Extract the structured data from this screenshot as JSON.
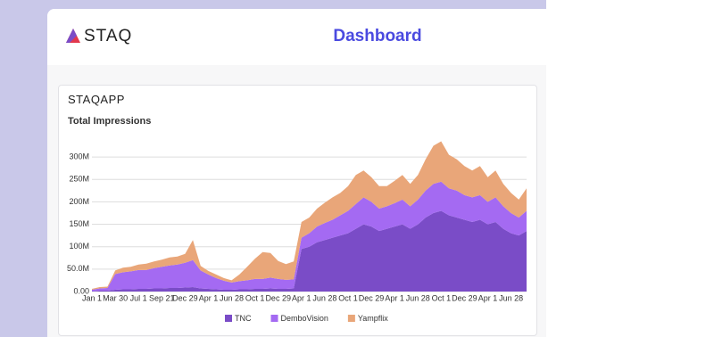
{
  "header": {
    "logo": "STAQ",
    "title": "Dashboard"
  },
  "panel": {
    "title": "STAQAPP"
  },
  "chart_data": {
    "type": "stacked-area",
    "title": "Total Impressions",
    "categories": [
      "Jan 1",
      null,
      null,
      "Mar 30",
      null,
      null,
      "Jul 1",
      null,
      null,
      "Sep 21",
      null,
      null,
      "Dec 29",
      null,
      null,
      "Apr 1",
      null,
      null,
      "Jun 28",
      null,
      null,
      "Oct 1",
      null,
      null,
      "Dec 29",
      null,
      null,
      "Apr 1",
      null,
      null,
      "Jun 28",
      null,
      null,
      "Oct 1",
      null,
      null,
      "Dec 29",
      null,
      null,
      "Apr 1",
      null,
      null,
      "Jun 28",
      null,
      null,
      "Oct 1",
      null,
      null,
      "Dec 29",
      null,
      null,
      "Apr 1",
      null,
      null,
      "Jun 28",
      null,
      null
    ],
    "series": [
      {
        "name": "TNC",
        "color": "#7a4cc7",
        "values": [
          1000000.0,
          2000000.0,
          2000000.0,
          4000000.0,
          5000000.0,
          5000000.0,
          6000000.0,
          6000000.0,
          7000000.0,
          7000000.0,
          8000000.0,
          8000000.0,
          9000000.0,
          10000000.0,
          7000000.0,
          6000000.0,
          5000000.0,
          4000000.0,
          4000000.0,
          5000000.0,
          5000000.0,
          6000000.0,
          6000000.0,
          7000000.0,
          6000000.0,
          6000000.0,
          7000000.0,
          95000000.0,
          100000000.0,
          110000000.0,
          115000000.0,
          120000000.0,
          125000000.0,
          130000000.0,
          140000000.0,
          150000000.0,
          145000000.0,
          135000000.0,
          140000000.0,
          145000000.0,
          150000000.0,
          140000000.0,
          150000000.0,
          165000000.0,
          175000000.0,
          180000000.0,
          170000000.0,
          165000000.0,
          160000000.0,
          155000000.0,
          160000000.0,
          150000000.0,
          155000000.0,
          140000000.0,
          130000000.0,
          125000000.0,
          135000000.0
        ]
      },
      {
        "name": "DemboVision",
        "color": "#a46af2",
        "values": [
          3000000.0,
          5000000.0,
          6000000.0,
          35000000.0,
          38000000.0,
          40000000.0,
          42000000.0,
          42000000.0,
          45000000.0,
          48000000.0,
          50000000.0,
          52000000.0,
          55000000.0,
          60000000.0,
          40000000.0,
          32000000.0,
          25000000.0,
          20000000.0,
          16000000.0,
          18000000.0,
          20000000.0,
          22000000.0,
          22000000.0,
          24000000.0,
          22000000.0,
          20000000.0,
          20000000.0,
          25000000.0,
          30000000.0,
          35000000.0,
          38000000.0,
          40000000.0,
          45000000.0,
          50000000.0,
          55000000.0,
          60000000.0,
          55000000.0,
          50000000.0,
          50000000.0,
          52000000.0,
          55000000.0,
          50000000.0,
          55000000.0,
          60000000.0,
          65000000.0,
          65000000.0,
          60000000.0,
          60000000.0,
          55000000.0,
          55000000.0,
          55000000.0,
          50000000.0,
          55000000.0,
          50000000.0,
          45000000.0,
          40000000.0,
          45000000.0
        ]
      },
      {
        "name": "Yampflix",
        "color": "#e9a679",
        "values": [
          2000000.0,
          3000000.0,
          3000000.0,
          8000000.0,
          10000000.0,
          10000000.0,
          12000000.0,
          14000000.0,
          15000000.0,
          16000000.0,
          18000000.0,
          18000000.0,
          20000000.0,
          45000000.0,
          10000000.0,
          8000000.0,
          8000000.0,
          6000000.0,
          5000000.0,
          15000000.0,
          30000000.0,
          45000000.0,
          60000000.0,
          55000000.0,
          40000000.0,
          35000000.0,
          40000000.0,
          35000000.0,
          35000000.0,
          40000000.0,
          45000000.0,
          50000000.0,
          50000000.0,
          55000000.0,
          65000000.0,
          60000000.0,
          55000000.0,
          50000000.0,
          45000000.0,
          50000000.0,
          55000000.0,
          50000000.0,
          55000000.0,
          70000000.0,
          85000000.0,
          90000000.0,
          75000000.0,
          70000000.0,
          65000000.0,
          60000000.0,
          65000000.0,
          55000000.0,
          60000000.0,
          50000000.0,
          45000000.0,
          40000000.0,
          50000000.0
        ]
      }
    ],
    "ylim": [
      0,
      340000000
    ],
    "yticks": [
      {
        "value": 0,
        "label": "0.00"
      },
      {
        "value": 50000000,
        "label": "50.0M"
      },
      {
        "value": 100000000,
        "label": "100M"
      },
      {
        "value": 150000000,
        "label": "150M"
      },
      {
        "value": 200000000,
        "label": "200M"
      },
      {
        "value": 250000000,
        "label": "250M"
      },
      {
        "value": 300000000,
        "label": "300M"
      }
    ],
    "grid": true,
    "stacked": true,
    "legend": "bottom"
  }
}
